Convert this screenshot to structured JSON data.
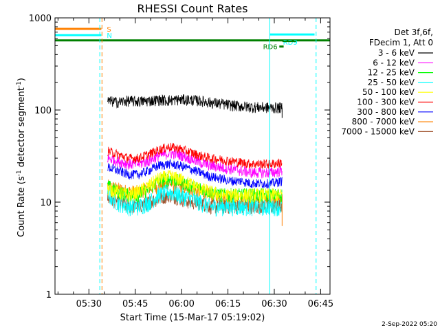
{
  "chart_data": {
    "type": "line",
    "title": "RHESSI Count Rates",
    "xlabel": "Start Time (15-Mar-17 05:19:02)",
    "ylabel_main": "Count Rate (s",
    "ylabel_sup1": "-1",
    "ylabel_mid": " detector segment",
    "ylabel_sup2": "-1",
    "ylabel_end": ")",
    "y_scale": "log",
    "ylim": [
      1,
      1000
    ],
    "xlim_minutes": [
      0,
      89
    ],
    "x_ticks": [
      {
        "label": "05:30",
        "minute": 10.97
      },
      {
        "label": "05:45",
        "minute": 25.97
      },
      {
        "label": "06:00",
        "minute": 40.97
      },
      {
        "label": "06:15",
        "minute": 55.97
      },
      {
        "label": "06:30",
        "minute": 70.97
      },
      {
        "label": "06:45",
        "minute": 85.97
      }
    ],
    "y_ticks": [
      {
        "label": "1",
        "value": 1
      },
      {
        "label": "10",
        "value": 10
      },
      {
        "label": "100",
        "value": 100
      },
      {
        "label": "1000",
        "value": 1000
      }
    ],
    "legend_header": [
      "Det 3f,6f,",
      "FDecim 1, Att 0"
    ],
    "series": [
      {
        "name": "3 - 6 keV",
        "color": "#000000",
        "values": [
          125,
          122,
          126,
          124,
          126,
          129,
          127,
          130,
          129,
          126,
          121,
          117,
          113,
          110,
          108,
          107,
          106,
          106
        ]
      },
      {
        "name": "6 - 12 keV",
        "color": "#ff00ff",
        "values": [
          30,
          28,
          26,
          26,
          28,
          32,
          34,
          33,
          30,
          27,
          25,
          24,
          23,
          22,
          21,
          21,
          21,
          22
        ]
      },
      {
        "name": "12 - 25 keV",
        "color": "#00ff00",
        "values": [
          15,
          13,
          12,
          12,
          14,
          17,
          18,
          17,
          15,
          14,
          13,
          12,
          12,
          12,
          12,
          12,
          12,
          12
        ]
      },
      {
        "name": "25 - 50 keV",
        "color": "#00ffff",
        "values": [
          12,
          10,
          9,
          9,
          10,
          12,
          13,
          12,
          11,
          10,
          9,
          9,
          9,
          9,
          9,
          9,
          9,
          9
        ]
      },
      {
        "name": "50 - 100 keV",
        "color": "#ffff00",
        "values": [
          14,
          13,
          12,
          13,
          15,
          18,
          19,
          18,
          16,
          14,
          13,
          12,
          12,
          12,
          12,
          12,
          12,
          12
        ]
      },
      {
        "name": "100 - 300 keV",
        "color": "#ff0000",
        "values": [
          36,
          33,
          30,
          30,
          33,
          37,
          40,
          38,
          35,
          32,
          30,
          29,
          28,
          27,
          26,
          26,
          26,
          27
        ]
      },
      {
        "name": "300 - 800 keV",
        "color": "#0000ff",
        "values": [
          24,
          22,
          20,
          20,
          22,
          25,
          26,
          25,
          23,
          21,
          19,
          18,
          17,
          17,
          16,
          16,
          16,
          17
        ]
      },
      {
        "name": "800 - 7000 keV",
        "color": "#ff8000",
        "values": [
          15,
          14,
          13,
          13,
          14,
          15,
          16,
          15,
          14,
          13,
          12,
          11,
          11,
          10,
          10,
          10,
          10,
          10
        ]
      },
      {
        "name": "7000 - 15000 keV",
        "color": "#a0522d",
        "values": [
          11,
          10,
          9,
          9,
          10,
          11,
          12,
          11,
          10,
          10,
          9,
          9,
          9,
          9,
          9,
          9,
          9,
          9
        ]
      }
    ],
    "series_start_minute": 17,
    "series_end_minute": 73.5,
    "state_bars": [
      {
        "label": "S",
        "color": "#ff8000",
        "value": 760,
        "start_minute": 0,
        "end_minute": 15
      },
      {
        "label": "N",
        "color": "#00ffff",
        "value": 650,
        "start_minute": 0,
        "end_minute": 15
      },
      {
        "label": "RD6",
        "color": "#008000",
        "value": 570,
        "start_minute": 0,
        "end_minute": 89
      },
      {
        "label": "RD9",
        "color": "#00ffff",
        "value": 660,
        "start_minute": 69.5,
        "end_minute": 84
      }
    ],
    "vertical_lines": [
      {
        "minute": 0,
        "color": "#00ffff",
        "style": "solid"
      },
      {
        "minute": 14.5,
        "color": "#00ffff",
        "style": "dashed"
      },
      {
        "minute": 15.2,
        "color": "#ff8000",
        "style": "dashed"
      },
      {
        "minute": 69.5,
        "color": "#00ffff",
        "style": "solid"
      },
      {
        "minute": 84.5,
        "color": "#00ffff",
        "style": "dashed"
      }
    ],
    "grid": false,
    "legend_placement": "right",
    "footer_date": "2-Sep-2022 05:20"
  }
}
